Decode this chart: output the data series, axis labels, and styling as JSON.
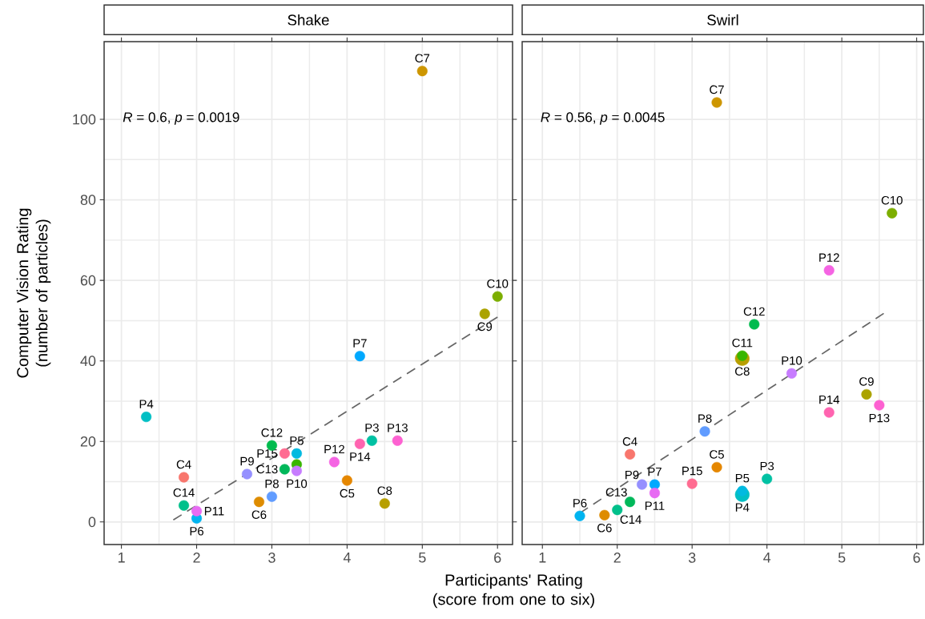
{
  "chart_data": [
    {
      "type": "scatter",
      "title": "Shake",
      "xlabel": "Participants' Rating (score from one to six)",
      "ylabel": "Computer Vision Rating (number of particles)",
      "xlim": [
        0.77,
        6.2
      ],
      "ylim": [
        -5.6,
        119.3
      ],
      "xticks": [
        1,
        2,
        3,
        4,
        5,
        6
      ],
      "yticks": [
        0,
        20,
        40,
        60,
        80,
        100
      ],
      "grid": true,
      "annotations": [
        "*R* = 0.6, *p* = 0.0019"
      ],
      "series": [
        {
          "type": "line",
          "color": "#666666",
          "line_style": "dashed",
          "marker": "none",
          "x": [
            1.69,
            6.0
          ],
          "values": [
            0.5,
            50.9
          ]
        },
        {
          "name": "C4",
          "color": "#F8766D",
          "marker": "circle",
          "x": [
            1.83
          ],
          "values": [
            11.1
          ]
        },
        {
          "name": "C5",
          "color": "#E58700",
          "marker": "circle",
          "x": [
            4.0
          ],
          "values": [
            10.3
          ]
        },
        {
          "name": "C6",
          "color": "#DE8C00",
          "marker": "circle",
          "x": [
            2.83
          ],
          "values": [
            5.0
          ]
        },
        {
          "name": "C7",
          "color": "#CD9600",
          "marker": "circle",
          "x": [
            5.0
          ],
          "values": [
            112
          ]
        },
        {
          "name": "C8",
          "color": "#B79F00",
          "marker": "circle",
          "x": [
            4.5
          ],
          "values": [
            4.6
          ]
        },
        {
          "name": "C9",
          "color": "#ABA300",
          "marker": "circle",
          "x": [
            5.83
          ],
          "values": [
            51.7
          ]
        },
        {
          "name": "C10",
          "color": "#7CAE00",
          "marker": "circle",
          "x": [
            6.0
          ],
          "values": [
            56.0
          ]
        },
        {
          "color": "#39B600",
          "marker": "circle",
          "x": [
            3.33
          ],
          "values": [
            14.3
          ]
        },
        {
          "name": "C12",
          "color": "#00BB4E",
          "marker": "circle",
          "x": [
            3.0
          ],
          "values": [
            19.0
          ]
        },
        {
          "name": "C13",
          "color": "#00B85A",
          "marker": "circle",
          "x": [
            3.17
          ],
          "values": [
            13.1
          ]
        },
        {
          "name": "C14",
          "color": "#00C08B",
          "marker": "circle",
          "x": [
            1.83
          ],
          "values": [
            4.1
          ]
        },
        {
          "name": "P3",
          "color": "#00C1A3",
          "marker": "circle",
          "x": [
            4.33
          ],
          "values": [
            20.2
          ]
        },
        {
          "name": "P4",
          "color": "#00BFC4",
          "marker": "circle",
          "x": [
            1.33
          ],
          "values": [
            26.1
          ]
        },
        {
          "name": "P5",
          "color": "#00BAE0",
          "marker": "circle",
          "x": [
            3.33
          ],
          "values": [
            17.0
          ]
        },
        {
          "name": "P6",
          "color": "#00B4F0",
          "marker": "circle",
          "x": [
            2.0
          ],
          "values": [
            0.9
          ]
        },
        {
          "name": "P7",
          "color": "#00A9FF",
          "marker": "circle",
          "x": [
            4.17
          ],
          "values": [
            41.2
          ]
        },
        {
          "name": "P8",
          "color": "#619CFF",
          "marker": "circle",
          "x": [
            3.0
          ],
          "values": [
            6.3
          ]
        },
        {
          "name": "P9",
          "color": "#9590FF",
          "marker": "circle",
          "x": [
            2.67
          ],
          "values": [
            11.9
          ]
        },
        {
          "name": "P10",
          "color": "#C77CFF",
          "marker": "circle",
          "x": [
            3.33
          ],
          "values": [
            12.7
          ]
        },
        {
          "name": "P11",
          "color": "#E76BF3",
          "marker": "circle",
          "x": [
            2.0
          ],
          "values": [
            2.7
          ]
        },
        {
          "name": "P12",
          "color": "#F564E3",
          "marker": "circle",
          "x": [
            3.83
          ],
          "values": [
            14.9
          ]
        },
        {
          "name": "P13",
          "color": "#FD61D1",
          "marker": "circle",
          "x": [
            4.67
          ],
          "values": [
            20.2
          ]
        },
        {
          "name": "P14",
          "color": "#FF64B0",
          "marker": "circle",
          "x": [
            4.17
          ],
          "values": [
            19.4
          ]
        },
        {
          "name": "P15",
          "color": "#FF6C91",
          "marker": "circle",
          "x": [
            3.17
          ],
          "values": [
            17.0
          ]
        }
      ]
    },
    {
      "type": "scatter",
      "title": "Swirl",
      "xlim": [
        0.73,
        6.09
      ],
      "ylim": [
        -5.6,
        119.3
      ],
      "xticks": [
        1,
        2,
        3,
        4,
        5,
        6
      ],
      "yticks": [
        0,
        20,
        40,
        60,
        80,
        100
      ],
      "tick_labels": "x",
      "grid": true,
      "annotations": [
        "*R* = 0.56, *p* = 0.0045"
      ],
      "series": [
        {
          "type": "line",
          "color": "#666666",
          "line_style": "dashed",
          "marker": "none",
          "x": [
            1.5,
            5.56
          ],
          "values": [
            2.2,
            51.8
          ]
        },
        {
          "name": "C4",
          "color": "#F8766D",
          "marker": "circle",
          "x": [
            2.17
          ],
          "values": [
            16.8
          ]
        },
        {
          "name": "C5",
          "color": "#E58700",
          "marker": "circle",
          "x": [
            3.33
          ],
          "values": [
            13.6
          ]
        },
        {
          "name": "C6",
          "color": "#DE8C00",
          "marker": "circle",
          "x": [
            1.83
          ],
          "values": [
            1.7
          ]
        },
        {
          "name": "C7",
          "color": "#CD9600",
          "marker": "circle",
          "x": [
            3.33
          ],
          "values": [
            104.2
          ]
        },
        {
          "name": "C8",
          "color": "#B79F00",
          "marker": "circle",
          "x": [
            3.67
          ],
          "values": [
            40.6
          ]
        },
        {
          "name": "C9",
          "color": "#ABA300",
          "marker": "circle",
          "x": [
            5.33
          ],
          "values": [
            31.7
          ]
        },
        {
          "name": "C10",
          "color": "#7CAE00",
          "marker": "circle",
          "x": [
            5.67
          ],
          "values": [
            76.7
          ]
        },
        {
          "name": "C11",
          "color": "#39B600",
          "marker": "circle",
          "x": [
            3.67
          ],
          "values": [
            41.3
          ]
        },
        {
          "name": "C12",
          "color": "#00BB4E",
          "marker": "circle",
          "x": [
            3.83
          ],
          "values": [
            49.1
          ]
        },
        {
          "name": "C13",
          "color": "#00B85A",
          "marker": "circle",
          "x": [
            2.17
          ],
          "values": [
            5.0
          ]
        },
        {
          "name": "C14",
          "color": "#00C08B",
          "marker": "circle",
          "x": [
            2.0
          ],
          "values": [
            3.0
          ]
        },
        {
          "name": "P3",
          "color": "#00C1A3",
          "marker": "circle",
          "x": [
            4.0
          ],
          "values": [
            10.7
          ]
        },
        {
          "name": "P4",
          "color": "#00BFC4",
          "marker": "circle",
          "x": [
            3.67
          ],
          "values": [
            6.8
          ]
        },
        {
          "name": "P5",
          "color": "#00BAE0",
          "marker": "circle",
          "x": [
            3.67
          ],
          "values": [
            7.7
          ]
        },
        {
          "name": "P6",
          "color": "#00B4F0",
          "marker": "circle",
          "x": [
            1.5
          ],
          "values": [
            1.5
          ]
        },
        {
          "name": "P7",
          "color": "#00A9FF",
          "marker": "circle",
          "x": [
            2.5
          ],
          "values": [
            9.3
          ]
        },
        {
          "name": "P8",
          "color": "#619CFF",
          "marker": "circle",
          "x": [
            3.17
          ],
          "values": [
            22.5
          ]
        },
        {
          "name": "P9",
          "color": "#9590FF",
          "marker": "circle",
          "x": [
            2.33
          ],
          "values": [
            9.3
          ]
        },
        {
          "name": "P10",
          "color": "#C77CFF",
          "marker": "circle",
          "x": [
            4.33
          ],
          "values": [
            36.9
          ]
        },
        {
          "name": "P11",
          "color": "#E76BF3",
          "marker": "circle",
          "x": [
            2.5
          ],
          "values": [
            7.2
          ]
        },
        {
          "name": "P12",
          "color": "#F564E3",
          "marker": "circle",
          "x": [
            4.83
          ],
          "values": [
            62.5
          ]
        },
        {
          "name": "P13",
          "color": "#FD61D1",
          "marker": "circle",
          "x": [
            5.5
          ],
          "values": [
            29.0
          ]
        },
        {
          "name": "P14",
          "color": "#FF64B0",
          "marker": "circle",
          "x": [
            4.83
          ],
          "values": [
            27.2
          ]
        },
        {
          "name": "P15",
          "color": "#FF6C91",
          "marker": "circle",
          "x": [
            3.0
          ],
          "values": [
            9.5
          ]
        }
      ]
    }
  ]
}
